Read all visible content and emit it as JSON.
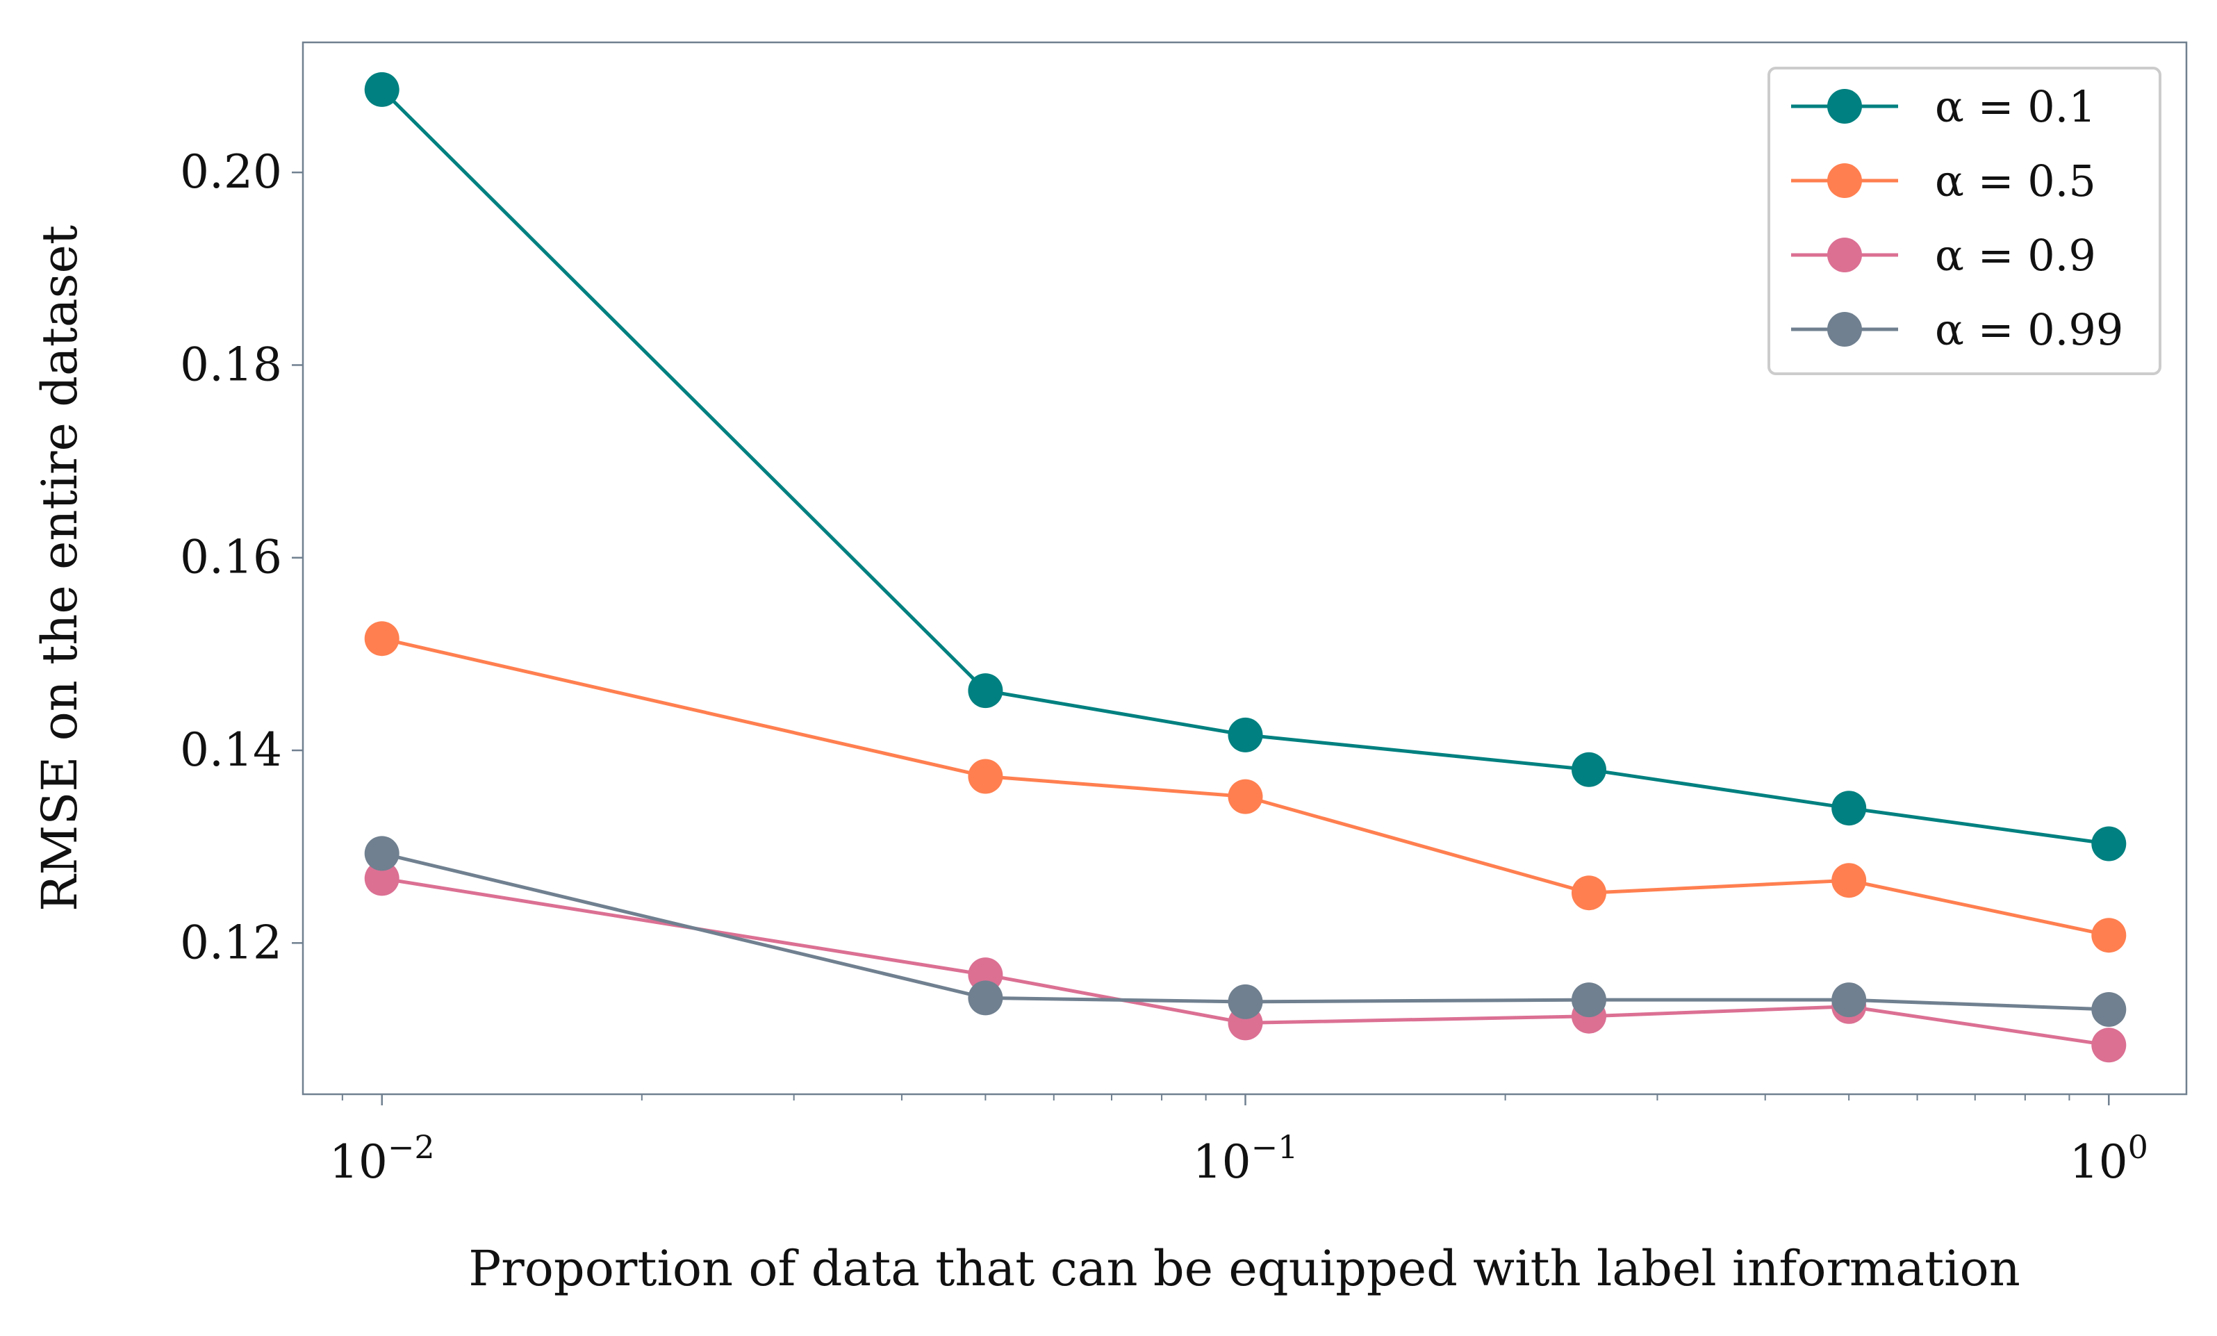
{
  "chart_data": {
    "type": "line",
    "title": "",
    "xlabel": "Proportion of data that can be equipped with label information",
    "ylabel": "RMSE on the entire dataset",
    "xscale": "log",
    "xlim": [
      0.0081,
      1.23
    ],
    "ylim": [
      0.1043,
      0.2135
    ],
    "grid": false,
    "legend_position": "top-right",
    "x": [
      0.01,
      0.05,
      0.1,
      0.25,
      0.5,
      1.0
    ],
    "xticks": [
      {
        "value": 0.01,
        "base": "10",
        "exp": "−2"
      },
      {
        "value": 0.1,
        "base": "10",
        "exp": "−1"
      },
      {
        "value": 1.0,
        "base": "10",
        "exp": "0"
      }
    ],
    "yticks": [
      {
        "value": 0.12,
        "label": "0.12"
      },
      {
        "value": 0.14,
        "label": "0.14"
      },
      {
        "value": 0.16,
        "label": "0.16"
      },
      {
        "value": 0.18,
        "label": "0.18"
      },
      {
        "value": 0.2,
        "label": "0.20"
      }
    ],
    "series": [
      {
        "name": "α = 0.1",
        "color": "#008080",
        "values": [
          0.2086,
          0.1462,
          0.1416,
          0.138,
          0.134,
          0.1303
        ]
      },
      {
        "name": "α = 0.5",
        "color": "#FF7F50",
        "values": [
          0.1516,
          0.1373,
          0.1352,
          0.1252,
          0.1265,
          0.1208
        ]
      },
      {
        "name": "α = 0.9",
        "color": "#DB7093",
        "values": [
          0.1267,
          0.1167,
          0.1117,
          0.1124,
          0.1134,
          0.1094
        ]
      },
      {
        "name": "α = 0.99",
        "color": "#708090",
        "values": [
          0.1293,
          0.1143,
          0.1139,
          0.1141,
          0.1141,
          0.1131
        ]
      }
    ]
  },
  "colors": {
    "axis": "#708090",
    "text": "#111111",
    "legend_border": "#cccccc"
  }
}
